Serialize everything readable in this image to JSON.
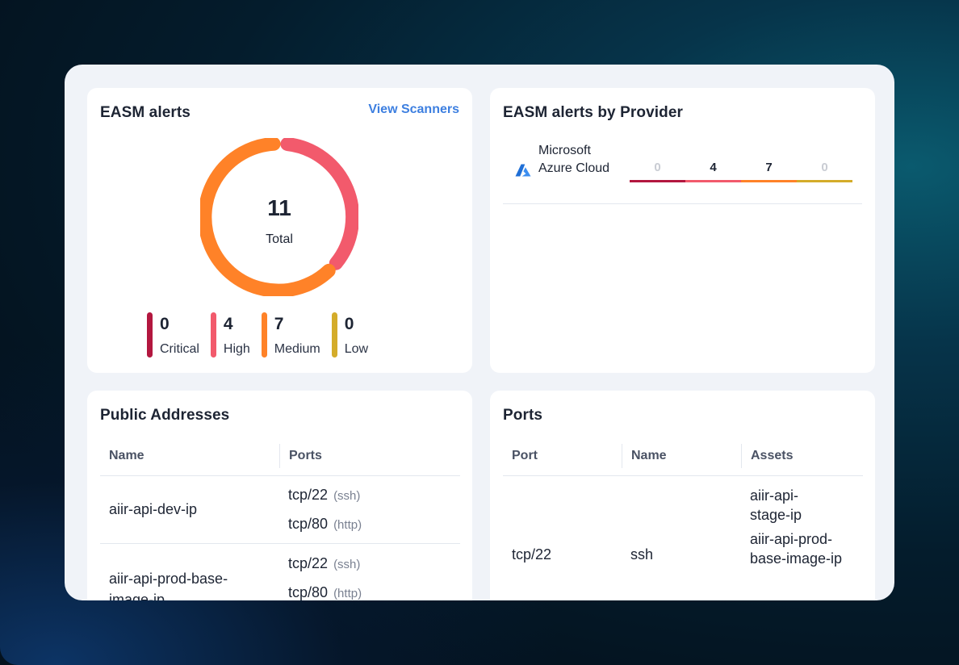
{
  "alerts": {
    "title": "EASM alerts",
    "view_scanners": "View Scanners",
    "total_value": "11",
    "total_label": "Total",
    "colors": {
      "critical": "#b3173f",
      "high": "#f25a6c",
      "medium": "#ff8228",
      "low": "#d4ac2a"
    },
    "legend": [
      {
        "value": "0",
        "label": "Critical",
        "color": "#b3173f"
      },
      {
        "value": "4",
        "label": "High",
        "color": "#f25a6c"
      },
      {
        "value": "7",
        "label": "Medium",
        "color": "#ff8228"
      },
      {
        "value": "0",
        "label": "Low",
        "color": "#d4ac2a"
      }
    ]
  },
  "provider": {
    "title": "EASM alerts by Provider",
    "rows": [
      {
        "name": "Microsoft Azure Cloud",
        "icon": "azure-icon",
        "counts": [
          {
            "value": "0",
            "color": "#b3173f",
            "text_color": "#c9ccd3"
          },
          {
            "value": "4",
            "color": "#f25a6c",
            "text_color": "#1d2433"
          },
          {
            "value": "7",
            "color": "#ff8228",
            "text_color": "#1d2433"
          },
          {
            "value": "0",
            "color": "#d4ac2a",
            "text_color": "#c9ccd3"
          }
        ]
      }
    ]
  },
  "addresses": {
    "title": "Public Addresses",
    "columns": [
      "Name",
      "Ports"
    ],
    "rows": [
      {
        "name": "aiir-api-dev-ip",
        "ports": [
          {
            "port": "tcp/22",
            "svc": "(ssh)"
          },
          {
            "port": "tcp/80",
            "svc": "(http)"
          }
        ]
      },
      {
        "name": "aiir-api-prod-base-image-ip",
        "ports": [
          {
            "port": "tcp/22",
            "svc": "(ssh)"
          },
          {
            "port": "tcp/80",
            "svc": "(http)"
          }
        ]
      }
    ]
  },
  "ports": {
    "title": "Ports",
    "columns": [
      "Port",
      "Name",
      "Assets"
    ],
    "rows": [
      {
        "port": "tcp/22",
        "name": "ssh",
        "assets": [
          "aiir-api-stage-ip",
          "aiir-api-prod-base-image-ip"
        ]
      }
    ]
  }
}
